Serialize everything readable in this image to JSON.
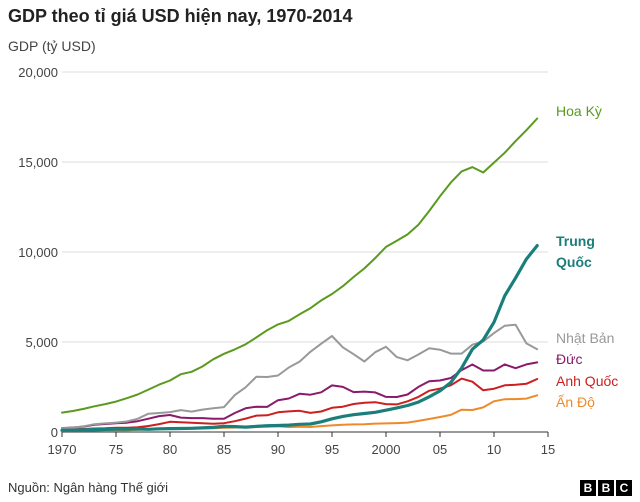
{
  "header": {
    "title": "GDP theo tỉ giá USD hiện nay, 1970-2014",
    "ylabel": "GDP (tỷ USD)"
  },
  "footer": {
    "source": "Nguồn: Ngân hàng Thế giới",
    "logo_letters": [
      "B",
      "B",
      "C"
    ]
  },
  "chart_data": {
    "type": "line",
    "title": "GDP theo tỉ giá USD hiện nay, 1970-2014",
    "ylabel": "GDP (tỷ USD)",
    "xlim": [
      1970,
      2015
    ],
    "ylim": [
      0,
      20000
    ],
    "x_ticks": [
      1970,
      1975,
      1980,
      1985,
      1990,
      1995,
      2000,
      2005,
      2010,
      2015
    ],
    "x_tick_labels": [
      "1970",
      "75",
      "80",
      "85",
      "90",
      "95",
      "2000",
      "05",
      "10",
      "15"
    ],
    "y_ticks": [
      0,
      5000,
      10000,
      15000,
      20000
    ],
    "y_tick_labels": [
      "0",
      "5,000",
      "10,000",
      "15,000",
      "20,000"
    ],
    "grid": "horizontal",
    "x": [
      1970,
      1971,
      1972,
      1973,
      1974,
      1975,
      1976,
      1977,
      1978,
      1979,
      1980,
      1981,
      1982,
      1983,
      1984,
      1985,
      1986,
      1987,
      1988,
      1989,
      1990,
      1991,
      1992,
      1993,
      1994,
      1995,
      1996,
      1997,
      1998,
      1999,
      2000,
      2001,
      2002,
      2003,
      2004,
      2005,
      2006,
      2007,
      2008,
      2009,
      2010,
      2011,
      2012,
      2013,
      2014
    ],
    "series": [
      {
        "name": "Hoa Kỳ",
        "color": "#5a9a1e",
        "bold": false,
        "values": [
          1075,
          1168,
          1282,
          1429,
          1549,
          1689,
          1878,
          2086,
          2357,
          2632,
          2863,
          3211,
          3345,
          3638,
          4041,
          4347,
          4590,
          4870,
          5253,
          5658,
          5980,
          6174,
          6539,
          6879,
          7309,
          7664,
          8100,
          8609,
          9089,
          9661,
          10285,
          10622,
          10978,
          11511,
          12275,
          13094,
          13856,
          14478,
          14719,
          14419,
          14964,
          15518,
          16163,
          16768,
          17419
        ]
      },
      {
        "name": "Trung Quốc",
        "color": "#1a7f7a",
        "bold": true,
        "values": [
          92,
          100,
          114,
          138,
          144,
          163,
          154,
          175,
          149,
          178,
          191,
          196,
          203,
          228,
          257,
          309,
          300,
          273,
          312,
          348,
          360,
          383,
          427,
          444,
          564,
          734,
          864,
          962,
          1029,
          1094,
          1211,
          1339,
          1471,
          1660,
          1955,
          2286,
          2752,
          3552,
          4598,
          5110,
          6101,
          7573,
          8561,
          9607,
          10354
        ]
      },
      {
        "name": "Nhật Bản",
        "color": "#999999",
        "bold": false,
        "values": [
          212,
          240,
          318,
          432,
          479,
          521,
          586,
          736,
          1018,
          1056,
          1105,
          1219,
          1134,
          1243,
          1318,
          1385,
          2052,
          2486,
          3071,
          3055,
          3139,
          3584,
          3909,
          4454,
          4907,
          5334,
          4707,
          4324,
          3915,
          4433,
          4731,
          4160,
          3981,
          4303,
          4656,
          4572,
          4357,
          4356,
          4849,
          5035,
          5495,
          5906,
          5954,
          4920,
          4602
        ]
      },
      {
        "name": "Đức",
        "color": "#8a1a6a",
        "bold": false,
        "values": [
          215,
          249,
          299,
          398,
          446,
          489,
          516,
          600,
          741,
          882,
          947,
          799,
          775,
          770,
          734,
          733,
          1058,
          1315,
          1406,
          1394,
          1765,
          1862,
          2124,
          2070,
          2205,
          2591,
          2504,
          2218,
          2243,
          2199,
          1950,
          1946,
          2082,
          2505,
          2820,
          2861,
          3002,
          3439,
          3752,
          3418,
          3417,
          3758,
          3544,
          3753,
          3868
        ]
      },
      {
        "name": "Anh Quốc",
        "color": "#cc1f1f",
        "bold": false,
        "values": [
          130,
          148,
          169,
          193,
          206,
          241,
          233,
          263,
          336,
          439,
          565,
          540,
          515,
          489,
          462,
          490,
          600,
          745,
          910,
          927,
          1093,
          1142,
          1179,
          1061,
          1140,
          1343,
          1407,
          1554,
          1629,
          1658,
          1548,
          1531,
          1707,
          1948,
          2297,
          2413,
          2595,
          2967,
          2793,
          2317,
          2406,
          2594,
          2630,
          2678,
          2942
        ]
      },
      {
        "name": "Ấn Độ",
        "color": "#ee8a2a",
        "bold": false,
        "values": [
          62,
          67,
          71,
          85,
          99,
          98,
          102,
          121,
          137,
          152,
          186,
          193,
          200,
          218,
          212,
          232,
          248,
          279,
          296,
          296,
          321,
          270,
          288,
          279,
          327,
          367,
          400,
          423,
          429,
          466,
          477,
          494,
          524,
          618,
          722,
          834,
          949,
          1239,
          1224,
          1365,
          1708,
          1823,
          1828,
          1857,
          2039
        ]
      }
    ]
  }
}
